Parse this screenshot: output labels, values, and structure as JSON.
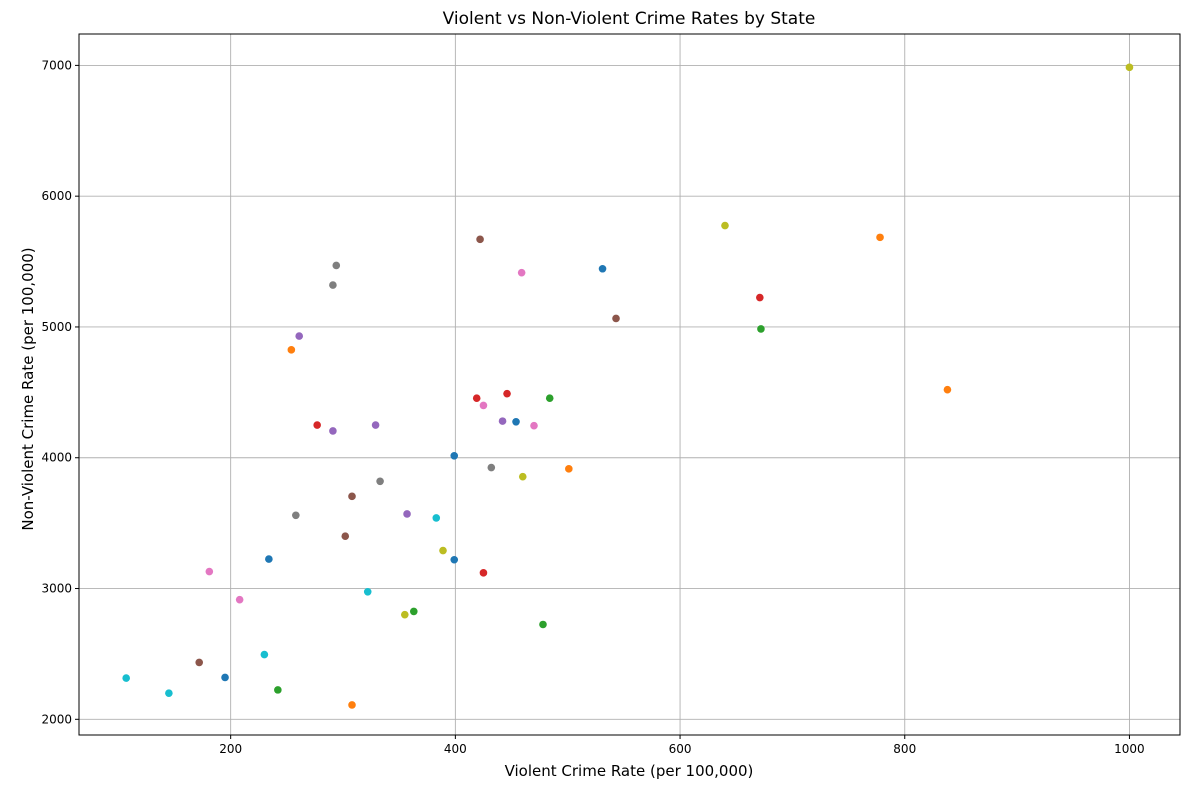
{
  "chart_data": {
    "type": "scatter",
    "title": "Violent vs Non-Violent Crime Rates by State",
    "xlabel": "Violent Crime Rate (per 100,000)",
    "ylabel": "Non-Violent Crime Rate (per 100,000)",
    "xlim": [
      65,
      1045
    ],
    "ylim": [
      1880,
      7240
    ],
    "xticks": [
      200,
      400,
      600,
      800,
      1000
    ],
    "yticks": [
      2000,
      3000,
      4000,
      5000,
      6000,
      7000
    ],
    "grid": true,
    "palette": [
      "#1f77b4",
      "#ff7f0e",
      "#2ca02c",
      "#d62728",
      "#9467bd",
      "#8c564b",
      "#e377c2",
      "#7f7f7f",
      "#bcbd22",
      "#17becf"
    ],
    "points": [
      {
        "x": 454,
        "y": 4275,
        "color": "#1f77b4"
      },
      {
        "x": 778,
        "y": 5685,
        "color": "#ff7f0e"
      },
      {
        "x": 484,
        "y": 4455,
        "color": "#2ca02c"
      },
      {
        "x": 446,
        "y": 4490,
        "color": "#d62728"
      },
      {
        "x": 442,
        "y": 4280,
        "color": "#9467bd"
      },
      {
        "x": 422,
        "y": 5670,
        "color": "#8c564b"
      },
      {
        "x": 425,
        "y": 4400,
        "color": "#e377c2"
      },
      {
        "x": 432,
        "y": 3925,
        "color": "#7f7f7f"
      },
      {
        "x": 1000,
        "y": 6985,
        "color": "#bcbd22"
      },
      {
        "x": 383,
        "y": 3540,
        "color": "#17becf"
      },
      {
        "x": 399,
        "y": 4015,
        "color": "#1f77b4"
      },
      {
        "x": 838,
        "y": 4520,
        "color": "#ff7f0e"
      },
      {
        "x": 672,
        "y": 4985,
        "color": "#2ca02c"
      },
      {
        "x": 671,
        "y": 5225,
        "color": "#d62728"
      },
      {
        "x": 329,
        "y": 4250,
        "color": "#9467bd"
      },
      {
        "x": 543,
        "y": 5065,
        "color": "#8c564b"
      },
      {
        "x": 459,
        "y": 5415,
        "color": "#e377c2"
      },
      {
        "x": 294,
        "y": 5470,
        "color": "#7f7f7f"
      },
      {
        "x": 640,
        "y": 5775,
        "color": "#bcbd22"
      },
      {
        "x": 531,
        "y": 5445,
        "color": "#1f77b4"
      },
      {
        "x": 254,
        "y": 4825,
        "color": "#ff7f0e"
      },
      {
        "x": 277,
        "y": 4250,
        "color": "#d62728"
      },
      {
        "x": 291,
        "y": 4205,
        "color": "#9467bd"
      },
      {
        "x": 291,
        "y": 5320,
        "color": "#7f7f7f"
      },
      {
        "x": 261,
        "y": 4930,
        "color": "#9467bd"
      },
      {
        "x": 470,
        "y": 4245,
        "color": "#e377c2"
      },
      {
        "x": 419,
        "y": 4455,
        "color": "#d62728"
      },
      {
        "x": 501,
        "y": 3915,
        "color": "#ff7f0e"
      },
      {
        "x": 460,
        "y": 3855,
        "color": "#bcbd22"
      },
      {
        "x": 333,
        "y": 3820,
        "color": "#7f7f7f"
      },
      {
        "x": 308,
        "y": 3705,
        "color": "#8c564b"
      },
      {
        "x": 258,
        "y": 3560,
        "color": "#7f7f7f"
      },
      {
        "x": 357,
        "y": 3570,
        "color": "#9467bd"
      },
      {
        "x": 302,
        "y": 3400,
        "color": "#8c564b"
      },
      {
        "x": 389,
        "y": 3290,
        "color": "#bcbd22"
      },
      {
        "x": 399,
        "y": 3220,
        "color": "#1f77b4"
      },
      {
        "x": 234,
        "y": 3225,
        "color": "#1f77b4"
      },
      {
        "x": 425,
        "y": 3120,
        "color": "#d62728"
      },
      {
        "x": 181,
        "y": 3130,
        "color": "#e377c2"
      },
      {
        "x": 322,
        "y": 2975,
        "color": "#17becf"
      },
      {
        "x": 208,
        "y": 2915,
        "color": "#e377c2"
      },
      {
        "x": 363,
        "y": 2825,
        "color": "#2ca02c"
      },
      {
        "x": 355,
        "y": 2800,
        "color": "#bcbd22"
      },
      {
        "x": 478,
        "y": 2725,
        "color": "#2ca02c"
      },
      {
        "x": 230,
        "y": 2495,
        "color": "#17becf"
      },
      {
        "x": 172,
        "y": 2435,
        "color": "#8c564b"
      },
      {
        "x": 107,
        "y": 2315,
        "color": "#17becf"
      },
      {
        "x": 195,
        "y": 2320,
        "color": "#1f77b4"
      },
      {
        "x": 242,
        "y": 2225,
        "color": "#2ca02c"
      },
      {
        "x": 145,
        "y": 2200,
        "color": "#17becf"
      },
      {
        "x": 308,
        "y": 2110,
        "color": "#ff7f0e"
      }
    ]
  }
}
